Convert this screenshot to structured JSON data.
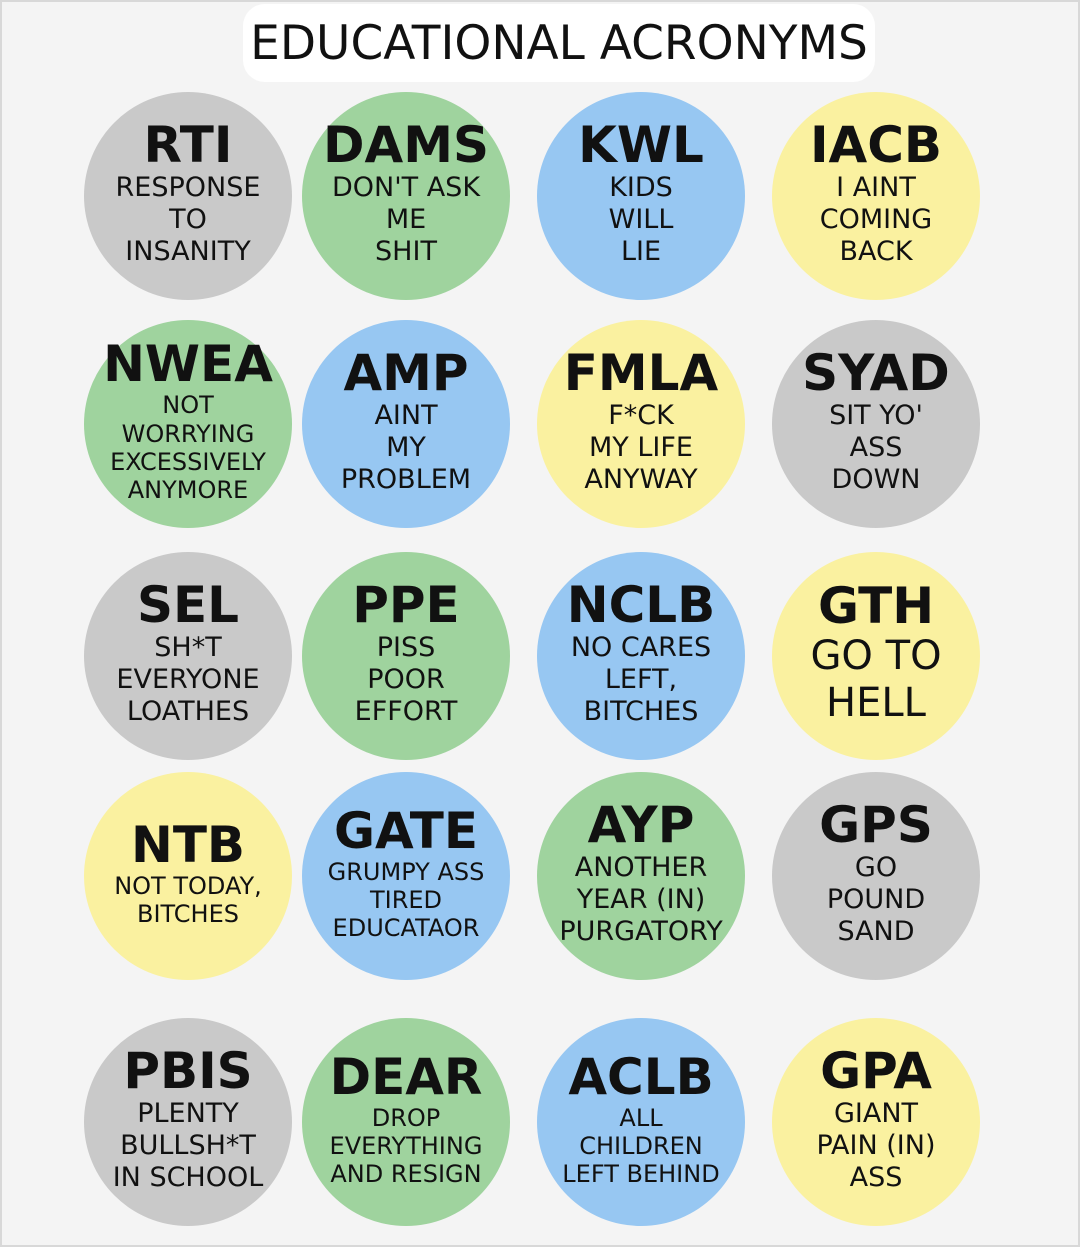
{
  "title": "EDUCATIONAL ACRONYMS",
  "colors": {
    "gray": "#c9c9c9",
    "green": "#9fd39e",
    "blue": "#97c7f2",
    "yellow": "#faf1a0",
    "background": "#f4f4f4"
  },
  "rows": [
    [
      {
        "acronym": "RTI",
        "meaning": "RESPONSE\nTO\nINSANITY",
        "color": "gray"
      },
      {
        "acronym": "DAMS",
        "meaning": "DON'T ASK\nME\nSHIT",
        "color": "green"
      },
      {
        "acronym": "KWL",
        "meaning": "KIDS\nWILL\nLIE",
        "color": "blue"
      },
      {
        "acronym": "IACB",
        "meaning": "I AINT\nCOMING\nBACK",
        "color": "yellow"
      }
    ],
    [
      {
        "acronym": "NWEA",
        "meaning": "NOT\nWORRYING\nEXCESSIVELY\nANYMORE",
        "color": "green"
      },
      {
        "acronym": "AMP",
        "meaning": "AINT\nMY\nPROBLEM",
        "color": "blue"
      },
      {
        "acronym": "FMLA",
        "meaning": "F*CK\nMY LIFE\nANYWAY",
        "color": "yellow"
      },
      {
        "acronym": "SYAD",
        "meaning": "SIT YO'\nASS\nDOWN",
        "color": "gray"
      }
    ],
    [
      {
        "acronym": "SEL",
        "meaning": "SH*T\nEVERYONE\nLOATHES",
        "color": "gray"
      },
      {
        "acronym": "PPE",
        "meaning": "PISS\nPOOR\nEFFORT",
        "color": "green"
      },
      {
        "acronym": "NCLB",
        "meaning": "NO CARES\nLEFT,\nBITCHES",
        "color": "blue"
      },
      {
        "acronym": "GTH",
        "meaning": "GO TO\nHELL",
        "color": "yellow"
      }
    ],
    [
      {
        "acronym": "NTB",
        "meaning": "NOT TODAY,\nBITCHES",
        "color": "yellow"
      },
      {
        "acronym": "GATE",
        "meaning": "GRUMPY ASS\nTIRED\nEDUCATAOR",
        "color": "blue"
      },
      {
        "acronym": "AYP",
        "meaning": "ANOTHER\nYEAR (IN)\nPURGATORY",
        "color": "green"
      },
      {
        "acronym": "GPS",
        "meaning": "GO\nPOUND\nSAND",
        "color": "gray"
      }
    ],
    [
      {
        "acronym": "PBIS",
        "meaning": "PLENTY\nBULLSH*T\nIN SCHOOL",
        "color": "gray"
      },
      {
        "acronym": "DEAR",
        "meaning": "DROP\nEVERYTHING\nAND RESIGN",
        "color": "green"
      },
      {
        "acronym": "ACLB",
        "meaning": "ALL\nCHILDREN\nLEFT BEHIND",
        "color": "blue"
      },
      {
        "acronym": "GPA",
        "meaning": "GIANT\nPAIN (IN)\nASS",
        "color": "yellow"
      }
    ]
  ]
}
